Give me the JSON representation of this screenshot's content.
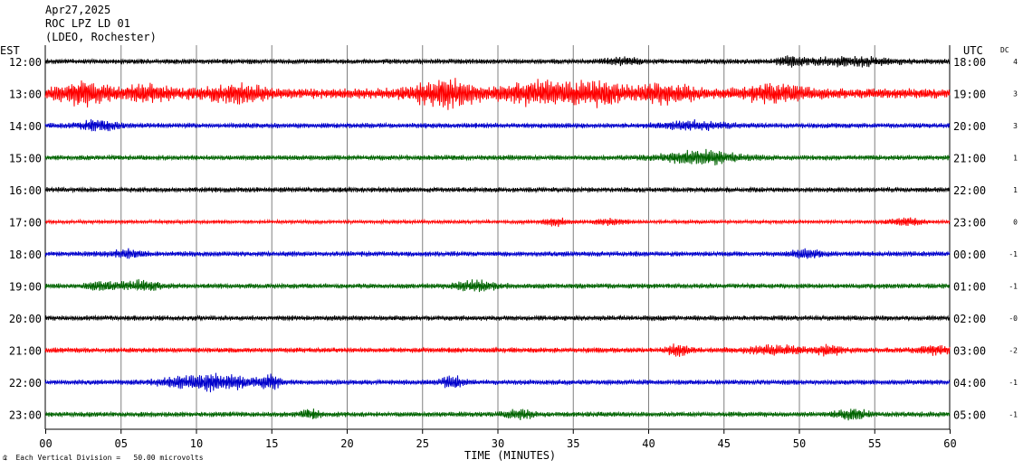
{
  "header": {
    "date": "Apr27,2025",
    "station": "ROC LPZ LD 01",
    "network": "(LDEO, Rochester)"
  },
  "left_axis_label": "EST",
  "right_axis_label": "UTC",
  "dc_label": "DC",
  "footer": {
    "scale_prefix": "Each Vertical Division =",
    "scale_value": "50.00 microvolts"
  },
  "colors": {
    "black": "#000000",
    "red": "#ff0000",
    "blue": "#0000cc",
    "green": "#006400",
    "grid": "#808080"
  },
  "chart_data": {
    "type": "line",
    "title": "Apr27,2025",
    "xlabel": "TIME (MINUTES)",
    "x_ticks": [
      "00",
      "05",
      "10",
      "15",
      "20",
      "25",
      "30",
      "35",
      "40",
      "45",
      "50",
      "55",
      "60"
    ],
    "xlim": [
      0,
      60
    ],
    "rows": [
      {
        "est": "12:00",
        "utc": "18:00",
        "dc": "4",
        "color": "black",
        "amplitude": 3,
        "bursts": [
          [
            38.3,
            1.5,
            4
          ],
          [
            49.5,
            1.2,
            4
          ],
          [
            53.5,
            4.0,
            4
          ]
        ]
      },
      {
        "est": "13:00",
        "utc": "19:00",
        "dc": "3",
        "color": "red",
        "amplitude": 6,
        "bursts": [
          [
            2.5,
            2.5,
            10
          ],
          [
            6.8,
            2.0,
            7
          ],
          [
            12.5,
            3.0,
            7
          ],
          [
            26.5,
            3.0,
            14
          ],
          [
            32.5,
            3.0,
            11
          ],
          [
            36.5,
            2.5,
            11
          ],
          [
            41.0,
            3.0,
            8
          ],
          [
            48.5,
            3.0,
            8
          ]
        ]
      },
      {
        "est": "14:00",
        "utc": "20:00",
        "dc": "3",
        "color": "blue",
        "amplitude": 3,
        "bursts": [
          [
            3.5,
            2.0,
            5
          ],
          [
            43.0,
            3.0,
            4
          ]
        ]
      },
      {
        "est": "15:00",
        "utc": "21:00",
        "dc": "1",
        "color": "green",
        "amplitude": 3,
        "bursts": [
          [
            43.5,
            3.5,
            7
          ]
        ]
      },
      {
        "est": "16:00",
        "utc": "22:00",
        "dc": "1",
        "color": "black",
        "amplitude": 3,
        "bursts": []
      },
      {
        "est": "17:00",
        "utc": "23:00",
        "dc": "0",
        "color": "red",
        "amplitude": 2,
        "bursts": [
          [
            34.0,
            1.2,
            4
          ],
          [
            37.5,
            1.5,
            3
          ],
          [
            57.0,
            1.5,
            4
          ]
        ]
      },
      {
        "est": "18:00",
        "utc": "00:00",
        "dc": "-1",
        "color": "blue",
        "amplitude": 3,
        "bursts": [
          [
            5.5,
            1.5,
            4
          ],
          [
            50.5,
            1.5,
            4
          ]
        ]
      },
      {
        "est": "19:00",
        "utc": "01:00",
        "dc": "-1",
        "color": "green",
        "amplitude": 3,
        "bursts": [
          [
            4.0,
            1.5,
            5
          ],
          [
            6.5,
            1.5,
            5
          ],
          [
            28.5,
            2.0,
            5
          ]
        ]
      },
      {
        "est": "20:00",
        "utc": "02:00",
        "dc": "-0",
        "color": "black",
        "amplitude": 3,
        "bursts": []
      },
      {
        "est": "21:00",
        "utc": "03:00",
        "dc": "-2",
        "color": "red",
        "amplitude": 3,
        "bursts": [
          [
            42.0,
            1.0,
            6
          ],
          [
            48.5,
            3.0,
            4
          ],
          [
            52.0,
            1.0,
            6
          ],
          [
            59.0,
            1.5,
            4
          ]
        ]
      },
      {
        "est": "22:00",
        "utc": "04:00",
        "dc": "-1",
        "color": "blue",
        "amplitude": 3,
        "bursts": [
          [
            11.0,
            4.0,
            9
          ],
          [
            15.0,
            1.0,
            6
          ],
          [
            27.0,
            1.0,
            6
          ]
        ]
      },
      {
        "est": "23:00",
        "utc": "05:00",
        "dc": "-1",
        "color": "green",
        "amplitude": 3,
        "bursts": [
          [
            17.5,
            1.0,
            4
          ],
          [
            31.5,
            1.5,
            4
          ],
          [
            53.5,
            1.5,
            5
          ]
        ]
      }
    ]
  }
}
